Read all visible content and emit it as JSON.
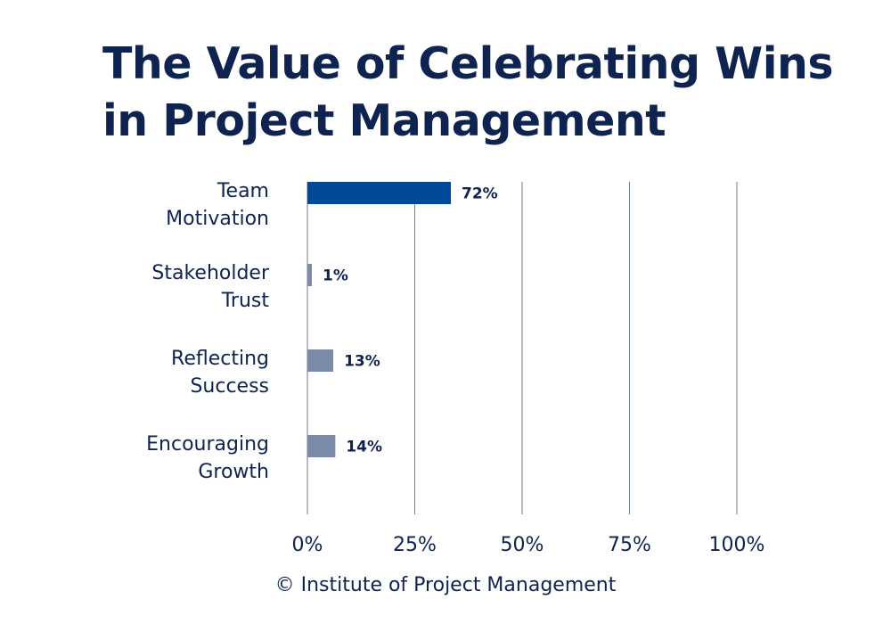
{
  "chart_data": {
    "type": "bar",
    "orientation": "horizontal",
    "title": "The Value of Celebrating Wins in Project Management",
    "title_lines": [
      "The Value of Celebrating Wins",
      "in Project Management"
    ],
    "categories": [
      [
        "Team",
        "Motivation"
      ],
      [
        "Stakeholder",
        "Trust"
      ],
      [
        "Reflecting",
        "Success"
      ],
      [
        "Encouraging",
        "Growth"
      ]
    ],
    "values": [
      72,
      1,
      13,
      14
    ],
    "data_labels": [
      "72%",
      "1%",
      "13%",
      "14%"
    ],
    "bar_colors": [
      "#004a98",
      "#7a8aa8",
      "#7a8aa8",
      "#7a8aa8"
    ],
    "xticks": [
      0,
      25,
      50,
      75,
      100
    ],
    "xtick_labels": [
      "0%",
      "25%",
      "50%",
      "75%",
      "100%"
    ],
    "xlim": [
      0,
      100
    ],
    "grid": true,
    "xlabel": "",
    "ylabel": ""
  },
  "footer": "© Institute of Project Management"
}
